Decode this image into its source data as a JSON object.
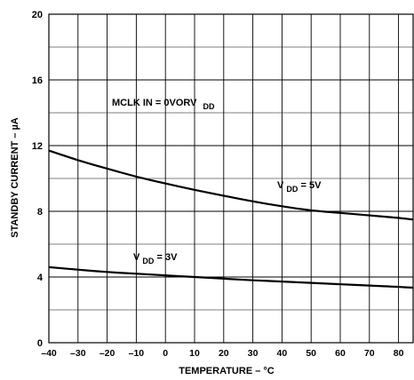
{
  "chart_data": {
    "type": "line",
    "xlabel": "TEMPERATURE – °C",
    "ylabel": "STANDBY CURRENT – µA",
    "xlim": [
      -40,
      85
    ],
    "ylim": [
      0,
      20
    ],
    "x_ticks": [
      -40,
      -30,
      -20,
      -10,
      0,
      10,
      20,
      30,
      40,
      50,
      60,
      70,
      80
    ],
    "x_tick_labels": [
      "–40",
      "–30",
      "–20",
      "–10",
      "0",
      "10",
      "20",
      "30",
      "40",
      "50",
      "60",
      "70",
      "80"
    ],
    "y_ticks": [
      0,
      4,
      8,
      12,
      16,
      20
    ],
    "y_tick_labels": [
      "0",
      "4",
      "8",
      "12",
      "16",
      "20"
    ],
    "grid": true,
    "legend": "none",
    "annotations": [
      {
        "text": "MCLK IN = 0VORV",
        "sub": "DD"
      }
    ],
    "series": [
      {
        "name": "VDD = 5V",
        "label_main": "V",
        "label_sub": "DD",
        "label_tail": " = 5V",
        "color": "#000000",
        "x": [
          -40,
          -30,
          -20,
          -10,
          0,
          10,
          20,
          30,
          40,
          50,
          60,
          70,
          80,
          85
        ],
        "values": [
          11.7,
          11.1,
          10.6,
          10.1,
          9.7,
          9.3,
          8.95,
          8.6,
          8.3,
          8.05,
          7.9,
          7.75,
          7.6,
          7.5
        ]
      },
      {
        "name": "VDD = 3V",
        "label_main": "V",
        "label_sub": "DD",
        "label_tail": " = 3V",
        "color": "#000000",
        "x": [
          -40,
          -30,
          -20,
          -10,
          0,
          10,
          20,
          30,
          40,
          50,
          60,
          70,
          80,
          85
        ],
        "values": [
          4.6,
          4.45,
          4.3,
          4.2,
          4.1,
          4.0,
          3.9,
          3.8,
          3.72,
          3.64,
          3.56,
          3.48,
          3.4,
          3.35
        ]
      }
    ]
  }
}
